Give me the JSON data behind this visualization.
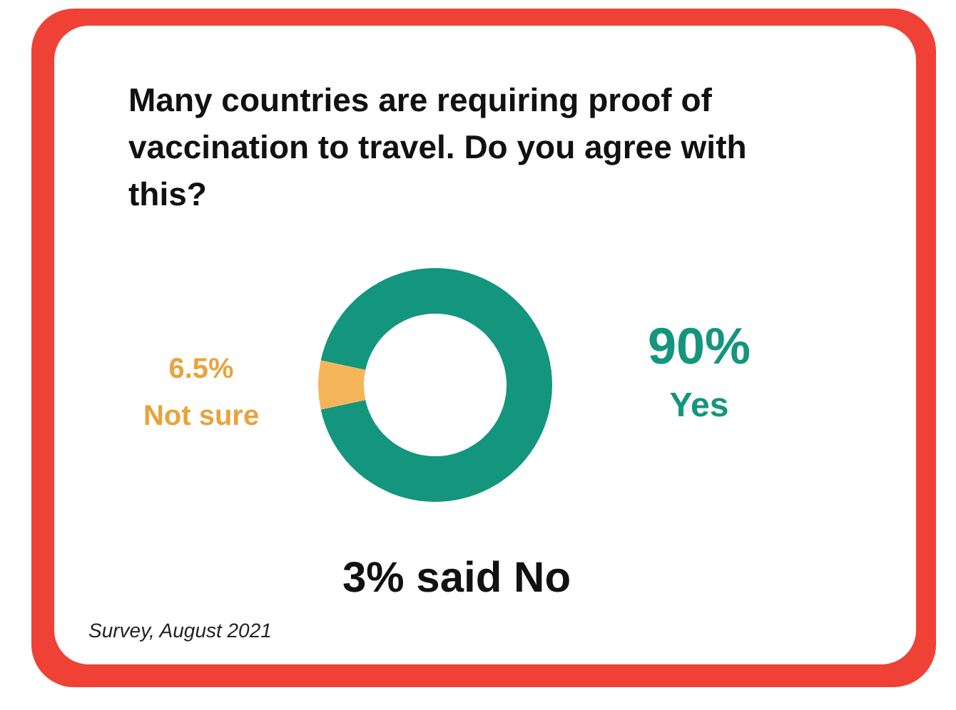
{
  "chart_data": {
    "type": "donut",
    "title": "Many countries are requiring proof of vaccination to travel. Do you agree with this?",
    "categories": [
      "Yes",
      "Not sure"
    ],
    "values": [
      90,
      6.5
    ],
    "colors": [
      "#13967d",
      "#f4b55a"
    ],
    "value_labels": [
      "90%",
      "6.5%"
    ],
    "annotations": [
      "3% said No",
      "Survey, August 2021"
    ]
  }
}
